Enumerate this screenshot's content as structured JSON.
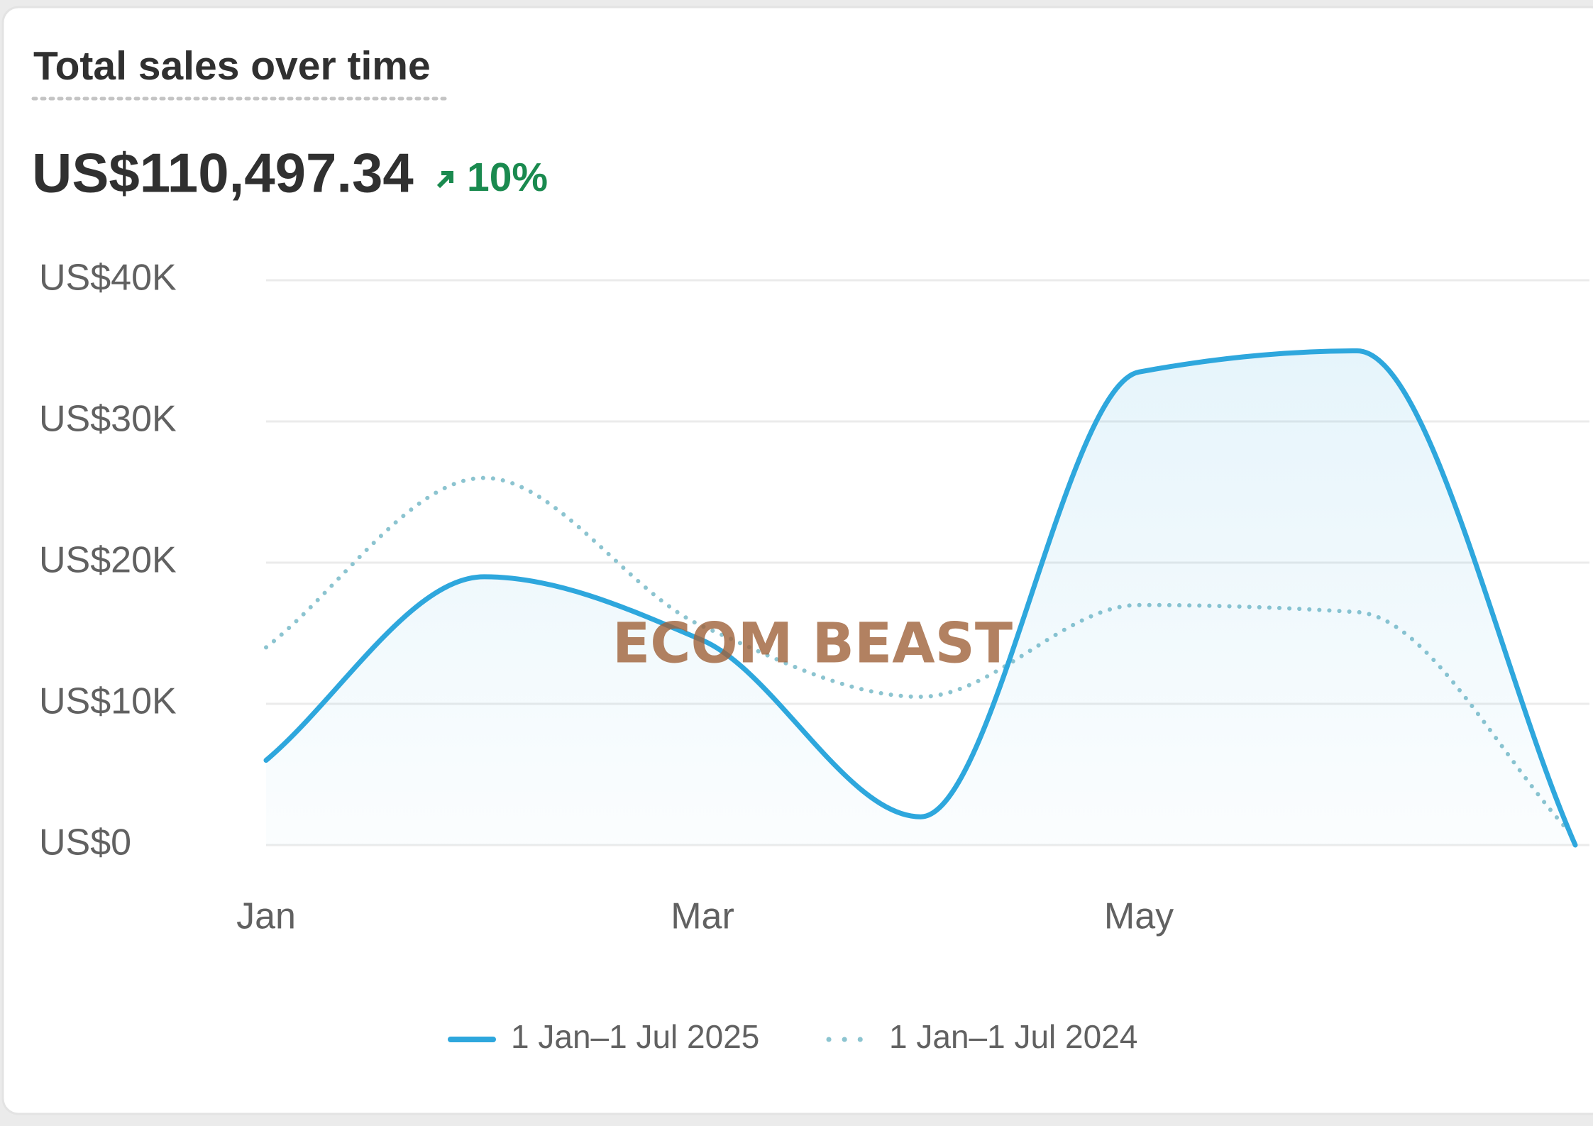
{
  "chart_data": {
    "type": "line",
    "title": "Total sales over time",
    "total": "US$110,497.34",
    "change": "10%",
    "categories": [
      "Jan",
      null,
      "Mar",
      null,
      "May",
      null,
      null
    ],
    "series": [
      {
        "name": "1 Jan–1 Jul 2025",
        "color": "#2ea7dd",
        "style": "solid",
        "area": true,
        "values": [
          6000,
          19000,
          14500,
          2000,
          33500,
          35000,
          0
        ]
      },
      {
        "name": "1 Jan–1 Jul 2024",
        "color": "#8cc4d0",
        "style": "dotted",
        "area": false,
        "values": [
          14000,
          26000,
          15500,
          10500,
          17000,
          16500,
          500
        ]
      }
    ],
    "ylim": [
      0,
      40000
    ],
    "yticks": [
      {
        "value": 0,
        "label": "US$0"
      },
      {
        "value": 10000,
        "label": "US$10K"
      },
      {
        "value": 20000,
        "label": "US$20K"
      },
      {
        "value": 30000,
        "label": "US$30K"
      },
      {
        "value": 40000,
        "label": "US$40K"
      }
    ],
    "grid": true,
    "legend": "bottom",
    "watermark": "ECOM BEAST"
  }
}
